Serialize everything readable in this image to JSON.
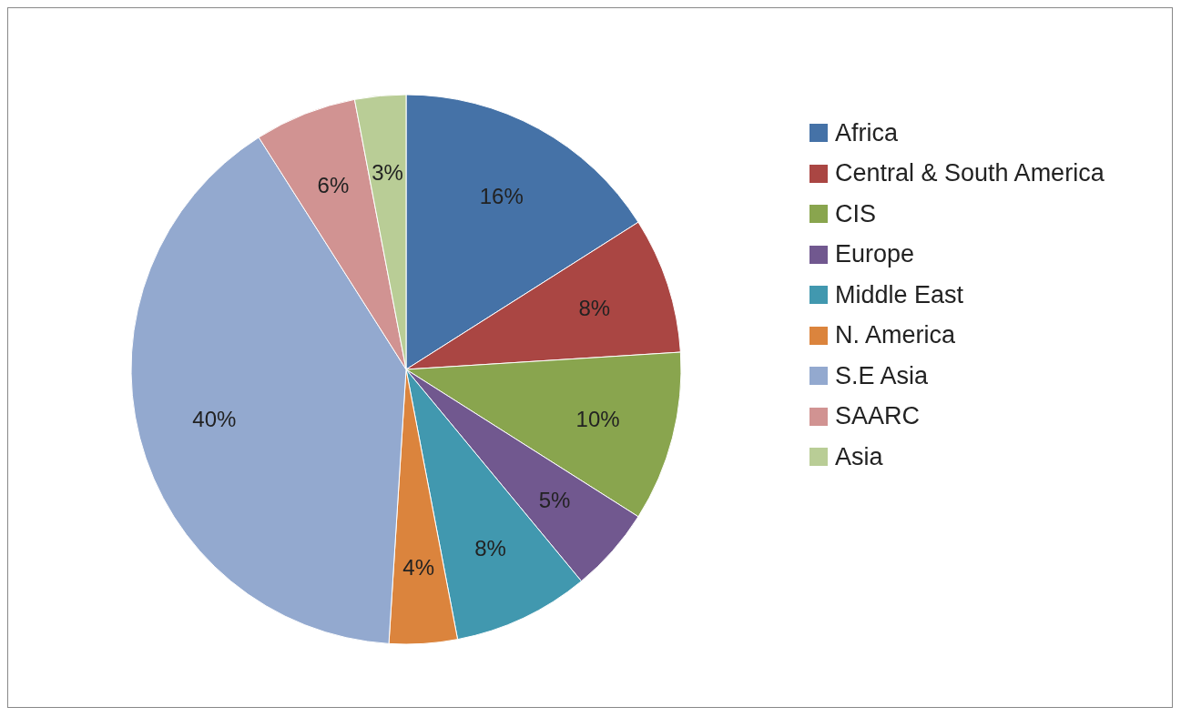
{
  "chart_data": {
    "type": "pie",
    "categories": [
      "Africa",
      "Central & South America",
      "CIS",
      "Europe",
      "Middle East",
      "N. America",
      "S.E Asia",
      "SAARC",
      "Asia"
    ],
    "values": [
      16,
      8,
      10,
      5,
      8,
      4,
      40,
      6,
      3
    ],
    "colors": [
      "#4572a7",
      "#aa4643",
      "#89a54e",
      "#71588f",
      "#4198af",
      "#db843d",
      "#93a9cf",
      "#d19392",
      "#b9cd96"
    ],
    "value_labels": [
      "16%",
      "8%",
      "10%",
      "5%",
      "8%",
      "4%",
      "40%",
      "6%",
      "3%"
    ],
    "legend": "right"
  }
}
